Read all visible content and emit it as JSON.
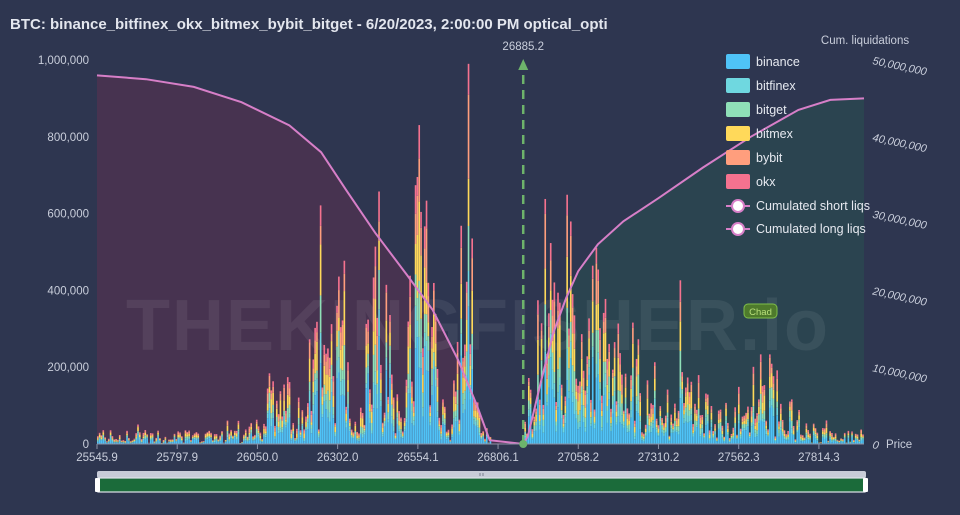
{
  "title": "BTC: binance_bitfinex_okx_bitmex_bybit_bitget - 6/20/2023, 2:00:00 PM optical_opti",
  "watermark": "THEKINGFISHER.io",
  "badge": "Chad",
  "colors": {
    "background": "#2e3650",
    "binance": "#4fc3f7",
    "bitfinex": "#6fd8e0",
    "bitget": "#8fe0b8",
    "bitmex": "#ffd95a",
    "bybit": "#ff9e7d",
    "okx": "#f5728f",
    "cum_line": "#d77fc8",
    "short_area": "#4a3350",
    "long_area": "#2b4650",
    "current_price": "#6db36b",
    "slider": "#1b6b3a"
  },
  "chart_data": {
    "type": "bar",
    "stacked": true,
    "title": "BTC: binance_bitfinex_okx_bitmex_bybit_bitget - 6/20/2023, 2:00:00 PM optical_opti",
    "xlabel": "Price",
    "ylabel": "",
    "y2label": "Cum. liquidations",
    "x_ticks": [
      "25545.9",
      "25797.9",
      "26050.0",
      "26302.0",
      "26554.1",
      "26806.1",
      "27058.2",
      "27310.2",
      "27562.3",
      "27814.3"
    ],
    "x_range": [
      25545.9,
      27956.0
    ],
    "ylim": [
      0,
      1000000
    ],
    "y_ticks": [
      "0",
      "200,000",
      "400,000",
      "600,000",
      "800,000",
      "1,000,000"
    ],
    "y2lim": [
      0,
      50000000
    ],
    "y2_ticks": [
      "0",
      "10,000,000",
      "20,000,000",
      "30,000,000",
      "40,000,000",
      "50,000,000"
    ],
    "current_price": 26885.2,
    "current_price_label": "26885.2",
    "gap": [
      26780,
      26885.2
    ],
    "series": [
      {
        "name": "binance"
      },
      {
        "name": "bitfinex"
      },
      {
        "name": "bitget"
      },
      {
        "name": "bitmex"
      },
      {
        "name": "bybit"
      },
      {
        "name": "okx"
      }
    ],
    "cumulative_series": [
      {
        "name": "Cumulated short liqs"
      },
      {
        "name": "Cumulated long liqs"
      }
    ],
    "short_cum_x": [
      25545.9,
      25700,
      25850,
      26000,
      26150,
      26250,
      26330,
      26420,
      26520,
      26600,
      26680,
      26740,
      26780,
      26885.2
    ],
    "short_cum_y": [
      48000000,
      47500000,
      46500000,
      44500000,
      41500000,
      38000000,
      33000000,
      27500000,
      22000000,
      17500000,
      11000000,
      5000000,
      500000,
      0
    ],
    "long_cum_x": [
      26885.2,
      26900,
      26940,
      26980,
      27020,
      27058,
      27120,
      27200,
      27310,
      27450,
      27600,
      27750,
      27850,
      27956
    ],
    "long_cum_y": [
      0,
      1000000,
      8000000,
      14500000,
      19000000,
      22500000,
      26000000,
      29000000,
      32000000,
      36000000,
      40000000,
      43500000,
      44800000,
      45000000
    ]
  },
  "legend": [
    {
      "label": "binance",
      "color": "#4fc3f7"
    },
    {
      "label": "bitfinex",
      "color": "#6fd8e0"
    },
    {
      "label": "bitget",
      "color": "#8fe0b8"
    },
    {
      "label": "bitmex",
      "color": "#ffd95a"
    },
    {
      "label": "bybit",
      "color": "#ff9e7d"
    },
    {
      "label": "okx",
      "color": "#f5728f"
    }
  ],
  "legend_lines": [
    {
      "label": "Cumulated short liqs",
      "color": "#d77fc8"
    },
    {
      "label": "Cumulated long liqs",
      "color": "#d77fc8"
    }
  ]
}
